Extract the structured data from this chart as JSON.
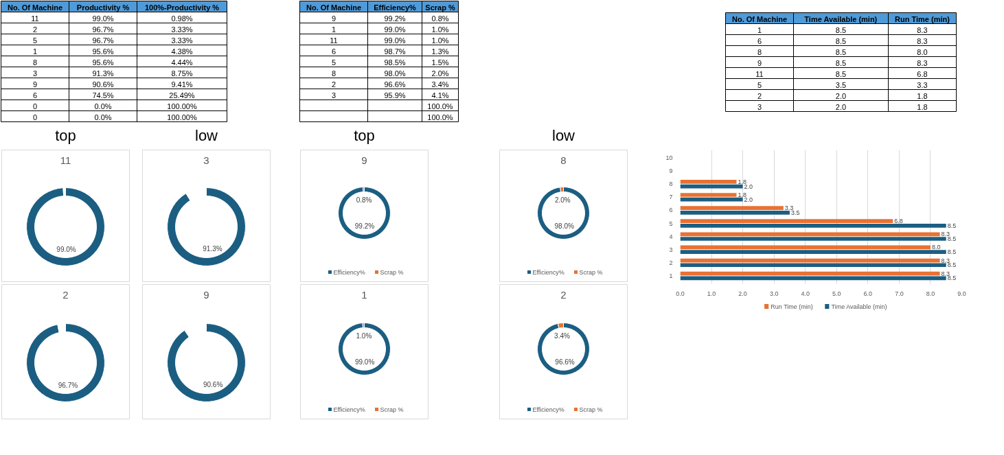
{
  "chart_data": [
    {
      "type": "other",
      "categories": [
        "No. Of Machine",
        "Productivity %",
        "100%-Productivity %"
      ],
      "cell_labels": [
        [
          "11",
          "99.0%",
          "0.98%"
        ],
        [
          "2",
          "96.7%",
          "3.33%"
        ],
        [
          "5",
          "96.7%",
          "3.33%"
        ],
        [
          "1",
          "95.6%",
          "4.38%"
        ],
        [
          "8",
          "95.6%",
          "4.44%"
        ],
        [
          "3",
          "91.3%",
          "8.75%"
        ],
        [
          "9",
          "90.6%",
          "9.41%"
        ],
        [
          "6",
          "74.5%",
          "25.49%"
        ],
        [
          "0",
          "0.0%",
          "100.00%"
        ],
        [
          "0",
          "0.0%",
          "100.00%"
        ]
      ]
    },
    {
      "type": "other",
      "categories": [
        "No. Of Machine",
        "Efficiency%",
        "Scrap %"
      ],
      "cell_labels": [
        [
          "9",
          "99.2%",
          "0.8%"
        ],
        [
          "1",
          "99.0%",
          "1.0%"
        ],
        [
          "11",
          "99.0%",
          "1.0%"
        ],
        [
          "6",
          "98.7%",
          "1.3%"
        ],
        [
          "5",
          "98.5%",
          "1.5%"
        ],
        [
          "8",
          "98.0%",
          "2.0%"
        ],
        [
          "2",
          "96.6%",
          "3.4%"
        ],
        [
          "3",
          "95.9%",
          "4.1%"
        ],
        [
          null,
          null,
          "100.0%"
        ],
        [
          null,
          null,
          "100.0%"
        ]
      ]
    },
    {
      "type": "other",
      "categories": [
        "No. Of Machine",
        "Time Available (min)",
        "Run Time (min)"
      ],
      "cell_labels": [
        [
          "1",
          "8.5",
          "8.3"
        ],
        [
          "6",
          "8.5",
          "8.3"
        ],
        [
          "8",
          "8.5",
          "8.0"
        ],
        [
          "9",
          "8.5",
          "8.3"
        ],
        [
          "11",
          "8.5",
          "6.8"
        ],
        [
          "5",
          "3.5",
          "3.3"
        ],
        [
          "2",
          "2.0",
          "1.8"
        ],
        [
          "3",
          "2.0",
          "1.8"
        ]
      ]
    },
    {
      "type": "donut",
      "title": "11",
      "annotations": [
        "top"
      ],
      "categories": [
        null,
        null
      ],
      "values": [
        99.0,
        1.0
      ],
      "colors": [
        "#1b5e82",
        "#ffffff"
      ],
      "value_labels": [
        "99.0%",
        null
      ]
    },
    {
      "type": "donut",
      "title": "3",
      "annotations": [
        "low"
      ],
      "categories": [
        null,
        null
      ],
      "values": [
        91.3,
        8.7
      ],
      "colors": [
        "#1b5e82",
        "#ffffff"
      ],
      "value_labels": [
        "91.3%",
        null
      ]
    },
    {
      "type": "donut",
      "title": "9",
      "annotations": [
        "top"
      ],
      "categories": [
        "Efficiency%",
        "Scrap %"
      ],
      "values": [
        99.2,
        0.8
      ],
      "colors": [
        "#1b5e82",
        "#e97132"
      ],
      "value_labels": [
        "99.2%",
        "0.8%"
      ],
      "legend": "bottom"
    },
    {
      "type": "donut",
      "title": "8",
      "annotations": [
        "low"
      ],
      "categories": [
        "Efficiency%",
        "Scrap %"
      ],
      "values": [
        98.0,
        2.0
      ],
      "colors": [
        "#1b5e82",
        "#e97132"
      ],
      "value_labels": [
        "98.0%",
        "2.0%"
      ],
      "legend": "bottom"
    },
    {
      "type": "bar",
      "orientation": "horizontal",
      "categories": [
        "10",
        "9",
        "8",
        "7",
        "6",
        "5",
        "4",
        "3",
        "2",
        "1"
      ],
      "series": [
        {
          "name": "Run Time (min)",
          "color": "#e97132",
          "values": [
            null,
            null,
            1.8,
            1.8,
            3.3,
            6.8,
            8.3,
            8.0,
            8.3,
            8.3
          ],
          "value_labels": [
            null,
            null,
            "1.8",
            "1.8",
            "3.3",
            "6.8",
            "8.3",
            "8.0",
            "8.3",
            "8.3"
          ]
        },
        {
          "name": "Time Available (min)",
          "color": "#1b5e82",
          "values": [
            null,
            null,
            2.0,
            2.0,
            3.5,
            8.5,
            8.5,
            8.5,
            8.5,
            8.5
          ],
          "value_labels": [
            null,
            null,
            "2.0",
            "2.0",
            "3.5",
            "8.5",
            "8.5",
            "8.5",
            "8.5",
            "8.5"
          ]
        }
      ],
      "xlim": [
        0,
        9
      ],
      "xticks": [
        {
          "value": 0,
          "label": "0.0"
        },
        {
          "value": 1,
          "label": "1.0"
        },
        {
          "value": 2,
          "label": "2.0"
        },
        {
          "value": 3,
          "label": "3.0"
        },
        {
          "value": 4,
          "label": "4.0"
        },
        {
          "value": 5,
          "label": "5.0"
        },
        {
          "value": 6,
          "label": "6.0"
        },
        {
          "value": 7,
          "label": "7.0"
        },
        {
          "value": 8,
          "label": "8.0"
        },
        {
          "value": 9,
          "label": "9.0"
        }
      ],
      "grid": "x",
      "legend": "bottom"
    },
    {
      "type": "donut",
      "title": "2",
      "categories": [
        null,
        null
      ],
      "values": [
        96.7,
        3.3
      ],
      "colors": [
        "#1b5e82",
        "#ffffff"
      ],
      "value_labels": [
        "96.7%",
        null
      ]
    },
    {
      "type": "donut",
      "title": "9",
      "categories": [
        null,
        null
      ],
      "values": [
        90.6,
        9.4
      ],
      "colors": [
        "#1b5e82",
        "#ffffff"
      ],
      "value_labels": [
        "90.6%",
        null
      ]
    },
    {
      "type": "donut",
      "title": "1",
      "categories": [
        "Efficiency%",
        "Scrap %"
      ],
      "values": [
        99.0,
        1.0
      ],
      "colors": [
        "#1b5e82",
        "#e97132"
      ],
      "value_labels": [
        "99.0%",
        "1.0%"
      ],
      "legend": "bottom"
    },
    {
      "type": "donut",
      "title": "2",
      "categories": [
        "Efficiency%",
        "Scrap %"
      ],
      "values": [
        96.6,
        3.4
      ],
      "colors": [
        "#1b5e82",
        "#e97132"
      ],
      "value_labels": [
        "96.6%",
        "3.4%"
      ],
      "legend": "bottom"
    }
  ]
}
